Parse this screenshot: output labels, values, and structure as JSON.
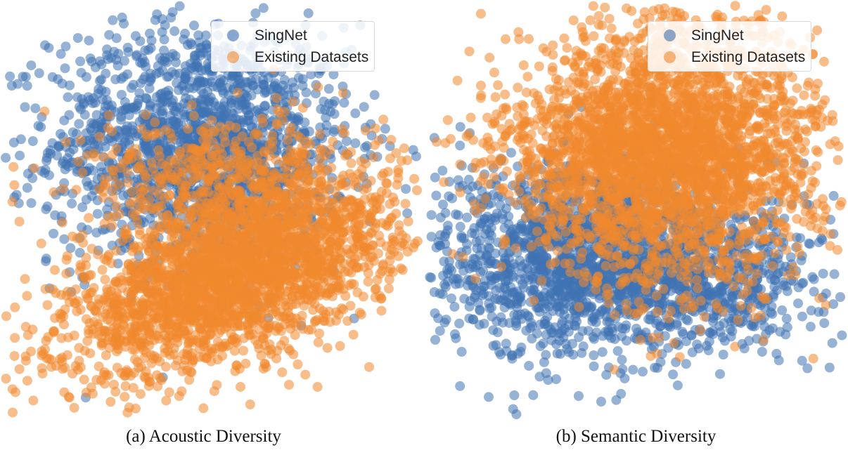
{
  "chart_data": [
    {
      "type": "scatter",
      "panel": "left",
      "title": "",
      "caption": "(a) Acoustic Diversity",
      "axes_visible": false,
      "grid": false,
      "legend_position": "top-right",
      "series": [
        {
          "name": "SingNet",
          "color": "#3f72b2",
          "clusters": [
            {
              "cx": 0.0,
              "cy": 1.2,
              "sx": 1.35,
              "sy": 1.1,
              "n": 1700
            }
          ],
          "x": [
            -2.6,
            0.1,
            -2.5,
            -1.8,
            2.4,
            2.6,
            -2.2,
            -0.5,
            -0.9
          ],
          "y": [
            2.4,
            3.2,
            0.9,
            2.2,
            0.6,
            1.1,
            -0.5,
            -4.0,
            -3.8
          ]
        },
        {
          "name": "Existing Datasets",
          "color": "#f0892e",
          "clusters": [
            {
              "cx": 0.6,
              "cy": -1.2,
              "sx": 1.5,
              "sy": 0.85,
              "rho": 0.55,
              "n": 2600
            },
            {
              "cx": 0.4,
              "cy": 0.6,
              "sx": 1.3,
              "sy": 0.6,
              "n": 500
            }
          ],
          "x": [
            -3.3,
            -2.9,
            -2.4,
            -2.3,
            3.5,
            3.3,
            -2.5,
            -2.8
          ],
          "y": [
            -0.2,
            -0.6,
            -3.4,
            -3.6,
            -0.6,
            -1.6,
            0.4,
            -2.7
          ]
        }
      ]
    },
    {
      "type": "scatter",
      "panel": "right",
      "title": "",
      "caption": "(b) Semantic Diversity",
      "axes_visible": false,
      "grid": false,
      "legend_position": "top-right",
      "series": [
        {
          "name": "SingNet",
          "color": "#3f72b2",
          "clusters": [
            {
              "cx": -1.2,
              "cy": -0.8,
              "sx": 1.3,
              "sy": 0.9,
              "n": 1300
            },
            {
              "cx": 0.9,
              "cy": -1.1,
              "sx": 1.3,
              "sy": 0.7,
              "n": 900
            }
          ],
          "x": [
            -3.2,
            -2.9,
            -1.0,
            -1.4,
            3.1,
            -0.6,
            0.4
          ],
          "y": [
            -2.2,
            -0.4,
            -3.3,
            -3.0,
            0.1,
            -3.4,
            -2.8
          ]
        },
        {
          "name": "Existing Datasets",
          "color": "#f0892e",
          "clusters": [
            {
              "cx": 0.8,
              "cy": 1.1,
              "sx": 1.25,
              "sy": 1.2,
              "n": 2600
            },
            {
              "cx": -0.6,
              "cy": 1.0,
              "sx": 1.1,
              "sy": 0.7,
              "n": 500
            }
          ],
          "x": [
            -2.4,
            -2.5,
            3.2,
            3.0,
            -0.2,
            0.4
          ],
          "y": [
            0.9,
            0.6,
            0.5,
            -0.2,
            -1.2,
            -1.8
          ]
        }
      ]
    }
  ]
}
